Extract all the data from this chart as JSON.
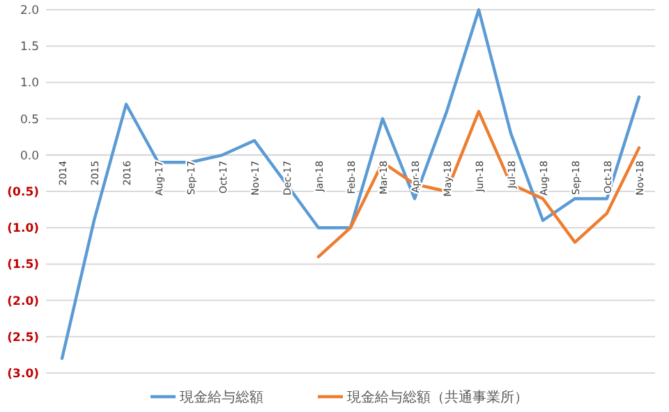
{
  "chart_data": {
    "type": "line",
    "categories": [
      "2014",
      "2015",
      "2016",
      "Aug-17",
      "Sep-17",
      "Oct-17",
      "Nov-17",
      "Dec-17",
      "Jan-18",
      "Feb-18",
      "Mar-18",
      "Apr-18",
      "May-18",
      "Jun-18",
      "Jul-18",
      "Aug-18",
      "Sep-18",
      "Oct-18",
      "Nov-18"
    ],
    "series": [
      {
        "name": "現金給与総額",
        "color": "#5b9bd5",
        "values": [
          -2.8,
          -0.9,
          0.7,
          -0.1,
          -0.1,
          0.0,
          0.2,
          -0.4,
          -1.0,
          -1.0,
          0.5,
          -0.6,
          0.6,
          2.0,
          0.3,
          -0.9,
          -0.6,
          -0.6,
          0.8
        ]
      },
      {
        "name": "現金給与総額（共通事業所）",
        "color": "#ed7d31",
        "values": [
          null,
          null,
          null,
          null,
          null,
          null,
          null,
          null,
          -1.4,
          -1.0,
          -0.1,
          -0.4,
          -0.5,
          0.6,
          -0.4,
          -0.6,
          -1.2,
          -0.8,
          0.1
        ]
      }
    ],
    "ylim": [
      -3,
      2
    ],
    "yticks": [
      {
        "value": -3,
        "label": "(3.0)"
      },
      {
        "value": -2.5,
        "label": "(2.5)"
      },
      {
        "value": -2,
        "label": "(2.0)"
      },
      {
        "value": -1.5,
        "label": "(1.5)"
      },
      {
        "value": -1,
        "label": "(1.0)"
      },
      {
        "value": -0.5,
        "label": "(0.5)"
      },
      {
        "value": 0,
        "label": "0.0"
      },
      {
        "value": 0.5,
        "label": "0.5"
      },
      {
        "value": 1,
        "label": "1.0"
      },
      {
        "value": 1.5,
        "label": "1.5"
      },
      {
        "value": 2,
        "label": "2.0"
      }
    ],
    "grid": "y",
    "legend": "bottom",
    "line_style": "solid",
    "marker": "none"
  }
}
